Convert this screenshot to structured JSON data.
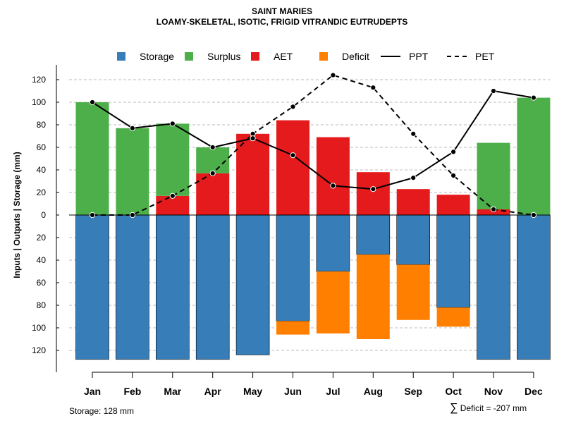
{
  "header": {
    "title": "SAINT MARIES",
    "subtitle": "LOAMY-SKELETAL, ISOTIC, FRIGID VITRANDIC EUTRUDEPTS"
  },
  "footer": {
    "storage_note": "Storage: 128 mm",
    "deficit_symbol": "∑",
    "deficit_note": "Deficit = -207 mm"
  },
  "colors": {
    "storage": "#377eb8",
    "surplus": "#4daf4a",
    "aet": "#e41a1c",
    "deficit": "#ff7f00",
    "line": "#000000",
    "grid": "#bbbbbb"
  },
  "chart_data": {
    "type": "bar",
    "title": "SAINT MARIES",
    "subtitle": "LOAMY-SKELETAL, ISOTIC, FRIGID VITRANDIC EUTRUDEPTS",
    "xlabel": "",
    "ylabel": "Inputs | Outputs | Storage    (mm)",
    "ylim": [
      -128,
      130
    ],
    "yticks": [
      120,
      100,
      80,
      60,
      40,
      20,
      0,
      -20,
      -40,
      -60,
      -80,
      -100,
      -120
    ],
    "ytick_labels": [
      "120",
      "100",
      "80",
      "60",
      "40",
      "20",
      "0",
      "20",
      "40",
      "60",
      "80",
      "100",
      "120"
    ],
    "grid": true,
    "legend": {
      "placement": "top",
      "entries": [
        "Storage",
        "Surplus",
        "AET",
        "Deficit",
        "PPT",
        "PET"
      ]
    },
    "categories": [
      "Jan",
      "Feb",
      "Mar",
      "Apr",
      "May",
      "Jun",
      "Jul",
      "Aug",
      "Sep",
      "Oct",
      "Nov",
      "Dec"
    ],
    "series": [
      {
        "name": "Storage",
        "kind": "bar",
        "values": [
          128,
          128,
          128,
          128,
          124,
          94,
          50,
          35,
          44,
          82,
          128,
          128
        ]
      },
      {
        "name": "Deficit",
        "kind": "bar",
        "values": [
          0,
          0,
          0,
          0,
          0,
          12,
          55,
          75,
          49,
          17,
          0,
          0
        ]
      },
      {
        "name": "AET",
        "kind": "bar",
        "values": [
          0,
          0,
          17,
          37,
          72,
          84,
          69,
          38,
          23,
          18,
          5,
          0
        ]
      },
      {
        "name": "Surplus",
        "kind": "bar",
        "values": [
          100,
          77,
          64,
          23,
          0,
          0,
          0,
          0,
          0,
          0,
          59,
          104
        ]
      },
      {
        "name": "PPT",
        "kind": "line",
        "dash": "solid",
        "values": [
          100,
          77,
          81,
          60,
          68,
          53,
          26,
          23,
          33,
          56,
          110,
          104
        ]
      },
      {
        "name": "PET",
        "kind": "line",
        "dash": "dashed",
        "values": [
          0,
          0,
          17,
          37,
          72,
          96,
          124,
          113,
          72,
          35,
          5,
          0
        ]
      }
    ]
  }
}
